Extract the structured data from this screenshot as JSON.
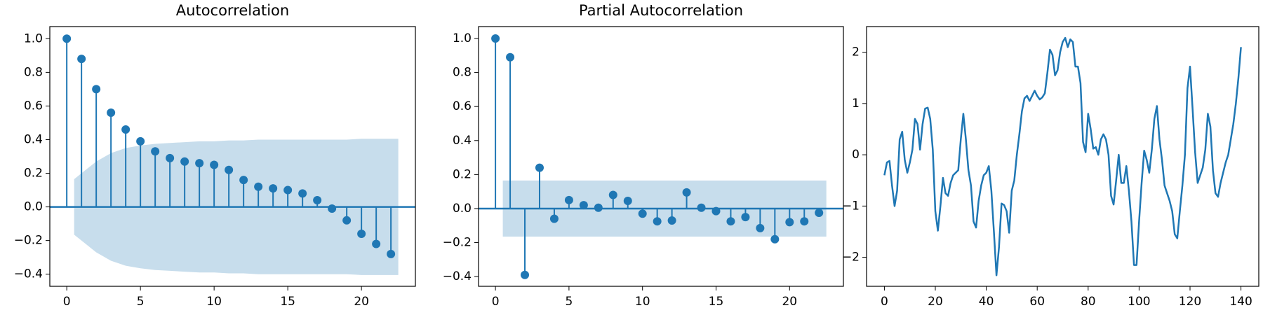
{
  "chart_data": [
    {
      "type": "stem",
      "title": "Autocorrelation",
      "color": "#1f77b4",
      "x": [
        0,
        1,
        2,
        3,
        4,
        5,
        6,
        7,
        8,
        9,
        10,
        11,
        12,
        13,
        14,
        15,
        16,
        17,
        18,
        19,
        20,
        21,
        22
      ],
      "values": [
        1.0,
        0.88,
        0.7,
        0.56,
        0.46,
        0.39,
        0.33,
        0.29,
        0.27,
        0.26,
        0.25,
        0.22,
        0.16,
        0.12,
        0.11,
        0.1,
        0.08,
        0.04,
        -0.01,
        -0.08,
        -0.16,
        -0.22,
        -0.28
      ],
      "band": {
        "x": [
          0.5,
          2,
          3,
          4,
          5,
          6,
          7,
          8,
          9,
          10,
          11,
          12,
          13,
          14,
          15,
          16,
          17,
          18,
          19,
          20,
          21,
          22.5
        ],
        "upper": [
          0.165,
          0.27,
          0.32,
          0.35,
          0.365,
          0.375,
          0.38,
          0.385,
          0.39,
          0.39,
          0.395,
          0.395,
          0.4,
          0.4,
          0.4,
          0.4,
          0.4,
          0.4,
          0.4,
          0.405,
          0.405,
          0.405
        ],
        "lower": [
          -0.165,
          -0.27,
          -0.32,
          -0.35,
          -0.365,
          -0.375,
          -0.38,
          -0.385,
          -0.39,
          -0.39,
          -0.395,
          -0.395,
          -0.4,
          -0.4,
          -0.4,
          -0.4,
          -0.4,
          -0.4,
          -0.4,
          -0.405,
          -0.405,
          -0.405
        ]
      },
      "xlim": [
        -1.15,
        23.66
      ],
      "ylim": [
        -0.472,
        1.072
      ],
      "xticks": [
        0,
        5,
        10,
        15,
        20
      ],
      "yticks": [
        {
          "value": -0.4,
          "label": "−0.4"
        },
        {
          "value": -0.2,
          "label": "−0.2"
        },
        {
          "value": 0,
          "label": "0.0"
        },
        0.2,
        0.4,
        0.6,
        0.8,
        {
          "value": 1,
          "label": "1.0"
        }
      ]
    },
    {
      "type": "stem",
      "title": "Partial Autocorrelation",
      "color": "#1f77b4",
      "x": [
        0,
        1,
        2,
        3,
        4,
        5,
        6,
        7,
        8,
        9,
        10,
        11,
        12,
        13,
        14,
        15,
        16,
        17,
        18,
        19,
        20,
        21,
        22
      ],
      "values": [
        1.0,
        0.89,
        -0.39,
        0.24,
        -0.06,
        0.05,
        0.02,
        0.005,
        0.08,
        0.045,
        -0.03,
        -0.075,
        -0.07,
        0.095,
        0.005,
        -0.015,
        -0.075,
        -0.05,
        -0.115,
        -0.18,
        -0.08,
        -0.075,
        -0.025
      ],
      "band": {
        "x": [
          0.5,
          22.5
        ],
        "upper": [
          0.165,
          0.165
        ],
        "lower": [
          -0.165,
          -0.165
        ]
      },
      "xlim": [
        -1.15,
        23.66
      ],
      "ylim": [
        -0.457,
        1.07
      ],
      "xticks": [
        0,
        5,
        10,
        15,
        20
      ],
      "yticks": [
        {
          "value": -0.4,
          "label": "−0.4"
        },
        {
          "value": -0.2,
          "label": "−0.2"
        },
        {
          "value": 0,
          "label": "0.0"
        },
        0.2,
        0.4,
        0.6,
        0.8,
        {
          "value": 1,
          "label": "1.0"
        }
      ]
    },
    {
      "type": "line",
      "color": "#1f77b4",
      "x": [
        0,
        1,
        2,
        3,
        4,
        5,
        6,
        7,
        8,
        9,
        10,
        11,
        12,
        13,
        14,
        15,
        16,
        17,
        18,
        19,
        20,
        21,
        22,
        23,
        24,
        25,
        26,
        27,
        28,
        29,
        30,
        31,
        32,
        33,
        34,
        35,
        36,
        37,
        38,
        39,
        40,
        41,
        42,
        43,
        44,
        45,
        46,
        47,
        48,
        49,
        50,
        51,
        52,
        53,
        54,
        55,
        56,
        57,
        58,
        59,
        60,
        61,
        62,
        63,
        64,
        65,
        66,
        67,
        68,
        69,
        70,
        71,
        72,
        73,
        74,
        75,
        76,
        77,
        78,
        79,
        80,
        81,
        82,
        83,
        84,
        85,
        86,
        87,
        88,
        89,
        90,
        91,
        92,
        93,
        94,
        95,
        96,
        97,
        98,
        99,
        100,
        101,
        102,
        103,
        104,
        105,
        106,
        107,
        108,
        109,
        110,
        111,
        112,
        113,
        114,
        115,
        116,
        117,
        118,
        119,
        120,
        121,
        122,
        123,
        124,
        125,
        126,
        127,
        128,
        129,
        130,
        131,
        132,
        133,
        134,
        135,
        136,
        137,
        138,
        139,
        140
      ],
      "values": [
        -0.4,
        -0.15,
        -0.12,
        -0.6,
        -1.0,
        -0.7,
        0.3,
        0.45,
        -0.1,
        -0.35,
        -0.15,
        0.1,
        0.7,
        0.6,
        0.1,
        0.6,
        0.9,
        0.92,
        0.7,
        0.1,
        -1.1,
        -1.48,
        -1.0,
        -0.45,
        -0.75,
        -0.8,
        -0.55,
        -0.4,
        -0.35,
        -0.3,
        0.3,
        0.8,
        0.3,
        -0.3,
        -0.6,
        -1.3,
        -1.42,
        -0.9,
        -0.6,
        -0.4,
        -0.35,
        -0.22,
        -0.7,
        -1.5,
        -2.35,
        -1.8,
        -0.95,
        -0.98,
        -1.1,
        -1.52,
        -0.7,
        -0.5,
        0.0,
        0.4,
        0.85,
        1.1,
        1.15,
        1.05,
        1.15,
        1.25,
        1.15,
        1.08,
        1.12,
        1.2,
        1.6,
        2.05,
        1.95,
        1.55,
        1.65,
        2.0,
        2.2,
        2.28,
        2.1,
        2.25,
        2.2,
        1.72,
        1.72,
        1.4,
        0.25,
        0.05,
        0.8,
        0.5,
        0.12,
        0.15,
        0.0,
        0.3,
        0.4,
        0.3,
        0.0,
        -0.8,
        -0.97,
        -0.5,
        0.0,
        -0.55,
        -0.55,
        -0.22,
        -0.7,
        -1.3,
        -2.15,
        -2.15,
        -1.3,
        -0.55,
        0.08,
        -0.1,
        -0.35,
        0.1,
        0.7,
        0.95,
        0.3,
        -0.1,
        -0.6,
        -0.75,
        -0.9,
        -1.1,
        -1.55,
        -1.63,
        -1.1,
        -0.6,
        0.0,
        1.3,
        1.72,
        0.9,
        0.05,
        -0.55,
        -0.4,
        -0.25,
        0.1,
        0.8,
        0.55,
        -0.3,
        -0.75,
        -0.82,
        -0.55,
        -0.35,
        -0.15,
        0.0,
        0.3,
        0.6,
        1.0,
        1.5,
        2.1
      ],
      "xlim": [
        -7,
        147
      ],
      "ylim": [
        -2.565,
        2.5
      ],
      "xticks": [
        0,
        20,
        40,
        60,
        80,
        100,
        120,
        140
      ],
      "yticks": [
        {
          "value": -2,
          "label": "−2"
        },
        {
          "value": -1,
          "label": "−1"
        },
        0,
        1,
        2
      ]
    }
  ]
}
